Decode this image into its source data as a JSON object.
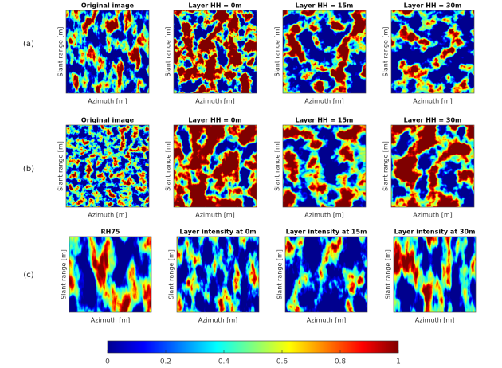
{
  "rows": [
    {
      "label": "(a)",
      "panels": [
        {
          "title": "Original image",
          "x_label": "Azimuth [m]",
          "y_label": "Slant range [m]"
        },
        {
          "title": "Layer HH = 0m",
          "x_label": "Azimuth [m]",
          "y_label": "Slant range [m]"
        },
        {
          "title": "Layer HH = 15m",
          "x_label": "Azimuth [m]",
          "y_label": "Slant range [m]"
        },
        {
          "title": "Layer HH = 30m",
          "x_label": "Azimuth [m]",
          "y_label": "Slant range [m]"
        }
      ]
    },
    {
      "label": "(b)",
      "panels": [
        {
          "title": "Original image",
          "x_label": "Azimuth [m]",
          "y_label": "Slant range [m]"
        },
        {
          "title": "Layer HH = 0m",
          "x_label": "Azimuth [m]",
          "y_label": "Slant range [m]"
        },
        {
          "title": "Layer HH = 15m",
          "x_label": "Azimuth [m]",
          "y_label": "Slant range [m]"
        },
        {
          "title": "Layer HH = 30m",
          "x_label": "Azimuth [m]",
          "y_label": "Slant range [m]"
        }
      ]
    },
    {
      "label": "(c)",
      "panels": [
        {
          "title": "RH75",
          "x_label": "Azimuth [m]",
          "y_label": "Slant range [m]"
        },
        {
          "title": "Layer intensity at 0m",
          "x_label": "Azimuth [m]",
          "y_label": "Slant range [m]"
        },
        {
          "title": "Layer intensity at 15m",
          "x_label": "Azimuth [m]",
          "y_label": "Slant range [m]"
        },
        {
          "title": "Layer intensity at 30m",
          "x_label": "Azimuth [m]",
          "y_label": "Slant range [m]"
        }
      ]
    }
  ],
  "colorbar": {
    "ticks": [
      0,
      0.2,
      0.4,
      0.6,
      0.8,
      1
    ],
    "range": [
      0,
      1
    ]
  }
}
